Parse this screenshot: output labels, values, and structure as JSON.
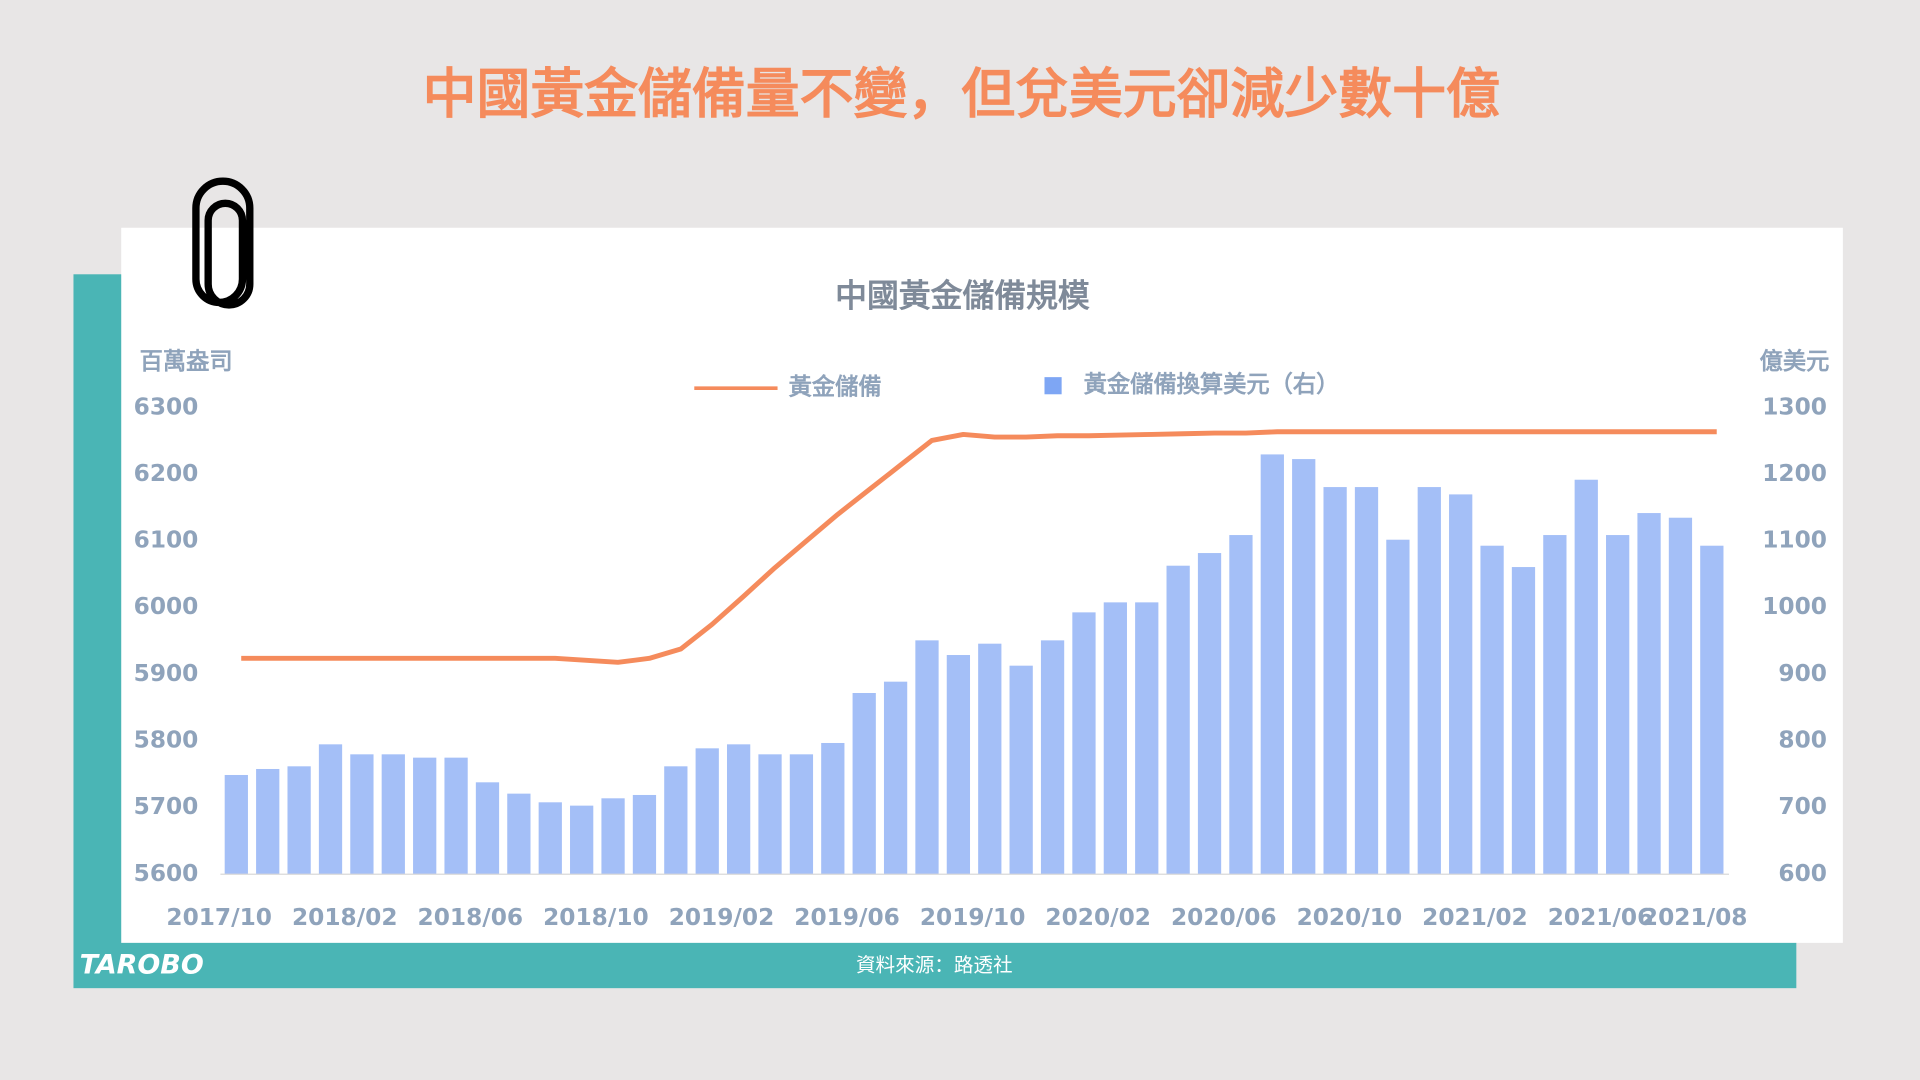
{
  "headline": "中國黃金儲備量不變，但兌美元卻減少數十億",
  "chart_data": {
    "type": "bar-line",
    "title": "中國黃金儲備規模",
    "y_label": "百萬盎司",
    "y2_label": "億美元",
    "categories": [
      "2017/10",
      null,
      null,
      null,
      "2018/02",
      null,
      null,
      null,
      "2018/06",
      null,
      null,
      null,
      "2018/10",
      null,
      null,
      null,
      "2019/02",
      null,
      null,
      null,
      "2019/06",
      null,
      null,
      null,
      "2019/10",
      null,
      null,
      null,
      "2020/02",
      null,
      null,
      null,
      "2020/06",
      null,
      null,
      null,
      "2020/10",
      null,
      null,
      null,
      "2021/02",
      null,
      null,
      null,
      "2021/06",
      null,
      null,
      "2021/08"
    ],
    "ylim": [
      5600,
      6300
    ],
    "yticks": [
      5600,
      5700,
      5800,
      5900,
      6000,
      6100,
      6200,
      6300
    ],
    "y2lim": [
      600,
      1300
    ],
    "y2ticks": [
      600,
      700,
      800,
      900,
      1000,
      1100,
      1200,
      1300
    ],
    "series": [
      {
        "name": "黃金儲備",
        "type": "line",
        "color": "#f58b5c",
        "values": [
          5924,
          5924,
          5924,
          5924,
          5924,
          5924,
          5924,
          5924,
          5924,
          5924,
          5924,
          5921,
          5918,
          5924,
          5938,
          5975,
          6017,
          6060,
          6100,
          6140,
          6177,
          6214,
          6251,
          6260,
          6256,
          6256,
          6258,
          6258,
          6259,
          6260,
          6261,
          6262,
          6262,
          6264,
          6264,
          6264,
          6264,
          6264,
          6264,
          6264,
          6264,
          6264,
          6264,
          6264,
          6264,
          6264,
          6264,
          6264
        ]
      },
      {
        "name": "黃金儲備換算美元（右）",
        "type": "bar",
        "axis": "y2",
        "color": "#a4bff7",
        "values": [
          749,
          758,
          762,
          795,
          780,
          780,
          775,
          775,
          738,
          721,
          708,
          703,
          714,
          719,
          762,
          789,
          795,
          780,
          780,
          797,
          872,
          889,
          951,
          929,
          946,
          913,
          951,
          993,
          1008,
          1008,
          1063,
          1082,
          1109,
          1230,
          1223,
          1181,
          1181,
          1102,
          1181,
          1170,
          1093,
          1061,
          1109,
          1192,
          1109,
          1142,
          1135,
          1093
        ]
      }
    ]
  },
  "source": "資料來源：路透社",
  "logo": "TAROBO"
}
